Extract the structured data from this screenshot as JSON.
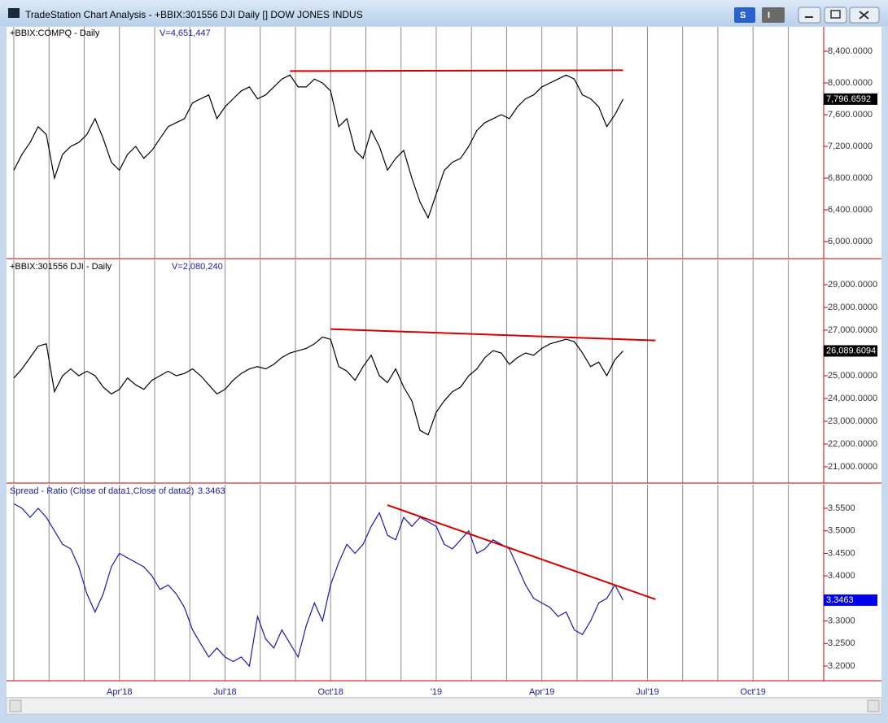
{
  "window": {
    "title": "TradeStation Chart Analysis - +BBIX:301556 DJI Daily [] DOW JONES INDUS",
    "buttons": [
      "S",
      "I"
    ]
  },
  "chart_data": [
    {
      "type": "line",
      "title": "+BBIX:COMPQ - Daily",
      "volume_label": "V=4,651,447",
      "color": "#000000",
      "values": [
        6900,
        7100,
        7250,
        7450,
        7350,
        6800,
        7100,
        7200,
        7250,
        7350,
        7550,
        7300,
        7000,
        6900,
        7100,
        7200,
        7050,
        7150,
        7300,
        7450,
        7500,
        7550,
        7750,
        7800,
        7850,
        7550,
        7700,
        7800,
        7900,
        7950,
        7800,
        7850,
        7950,
        8050,
        8100,
        7950,
        7950,
        8050,
        8000,
        7900,
        7450,
        7550,
        7150,
        7050,
        7400,
        7200,
        6900,
        7050,
        7150,
        6800,
        6500,
        6300,
        6600,
        6900,
        7000,
        7050,
        7200,
        7400,
        7500,
        7550,
        7600,
        7550,
        7700,
        7800,
        7850,
        7950,
        8000,
        8050,
        8100,
        8050,
        7850,
        7800,
        7700,
        7450,
        7600,
        7796.6592,
        null,
        null,
        null,
        null,
        null,
        null,
        null,
        null,
        null,
        null,
        null,
        null,
        null,
        null,
        null,
        null,
        null,
        null,
        null,
        null,
        null,
        null,
        null,
        null
      ],
      "last_label": "7,796.6592",
      "last_label_color": "#000000",
      "ylim": [
        5785,
        8708
      ],
      "yticks": [
        {
          "value": 8400,
          "label": "8,400.0000"
        },
        {
          "value": 8000,
          "label": "8,000.0000"
        },
        {
          "value": 7600,
          "label": "7,600.0000"
        },
        {
          "value": 7200,
          "label": "7,200.0000"
        },
        {
          "value": 6800,
          "label": "6,800.0000"
        },
        {
          "value": 6400,
          "label": "6,400.0000"
        },
        {
          "value": 6000,
          "label": "6,000.0000"
        }
      ],
      "trendline": {
        "from": 34,
        "to": 75,
        "values": [
          8150,
          8160
        ],
        "color": "#d00000"
      }
    },
    {
      "type": "line",
      "title": "+BBIX:301556 DJI - Daily",
      "volume_label": "V=2,080,240",
      "color": "#000000",
      "values": [
        24900,
        25300,
        25800,
        26300,
        26400,
        24300,
        25000,
        25300,
        25000,
        25200,
        25000,
        24500,
        24200,
        24400,
        24900,
        24600,
        24400,
        24800,
        25000,
        25200,
        25000,
        25100,
        25300,
        25000,
        24600,
        24200,
        24400,
        24800,
        25100,
        25300,
        25400,
        25300,
        25500,
        25800,
        26000,
        26100,
        26200,
        26400,
        26700,
        26600,
        25400,
        25200,
        24800,
        25400,
        25900,
        25000,
        24700,
        25300,
        24500,
        23900,
        22600,
        22400,
        23400,
        23900,
        24300,
        24500,
        25000,
        25300,
        25800,
        26100,
        26000,
        25500,
        25800,
        26000,
        25900,
        26200,
        26400,
        26500,
        26600,
        26500,
        26000,
        25400,
        25600,
        25000,
        25700,
        26089.6094,
        null,
        null,
        null,
        null,
        null,
        null,
        null,
        null,
        null,
        null,
        null,
        null,
        null,
        null,
        null,
        null,
        null,
        null,
        null,
        null,
        null,
        null,
        null,
        null
      ],
      "last_label": "26,089.6094",
      "last_label_color": "#000000",
      "ylim": [
        20286,
        30071
      ],
      "yticks": [
        {
          "value": 29000,
          "label": "29,000.0000"
        },
        {
          "value": 28000,
          "label": "28,000.0000"
        },
        {
          "value": 27000,
          "label": "27,000.0000"
        },
        {
          "value": 26000,
          "label": "26,000.0000"
        },
        {
          "value": 25000,
          "label": "25,000.0000"
        },
        {
          "value": 24000,
          "label": "24,000.0000"
        },
        {
          "value": 23000,
          "label": "23,000.0000"
        },
        {
          "value": 22000,
          "label": "22,000.0000"
        },
        {
          "value": 21000,
          "label": "21,000.0000"
        }
      ],
      "trendline": {
        "from": 39,
        "to": 79,
        "values": [
          27050,
          26550
        ],
        "color": "#d00000"
      }
    },
    {
      "type": "line",
      "title": "Spread - Ratio (Close of data1,Close of data2)",
      "volume_label": "3.3463",
      "color": "#1a1aa6",
      "categories": [
        null,
        null,
        null,
        null,
        null,
        null,
        null,
        null,
        null,
        null,
        null,
        null,
        null,
        "Apr'18",
        null,
        null,
        null,
        null,
        null,
        null,
        null,
        null,
        null,
        null,
        null,
        null,
        "Jul'18",
        null,
        null,
        null,
        null,
        null,
        null,
        null,
        null,
        null,
        null,
        null,
        null,
        "Oct'18",
        null,
        null,
        null,
        null,
        null,
        null,
        null,
        null,
        null,
        null,
        null,
        null,
        "'19",
        null,
        null,
        null,
        null,
        null,
        null,
        null,
        null,
        null,
        null,
        null,
        null,
        "Apr'19",
        null,
        null,
        null,
        null,
        null,
        null,
        null,
        null,
        null,
        null,
        null,
        null,
        "Jul'19",
        null,
        null,
        null,
        null,
        null,
        null,
        null,
        null,
        null,
        null,
        null,
        null,
        "Oct'19",
        null,
        null,
        null,
        null,
        null,
        null,
        null,
        null
      ],
      "values": [
        3.56,
        3.55,
        3.53,
        3.55,
        3.53,
        3.5,
        3.47,
        3.46,
        3.42,
        3.36,
        3.32,
        3.36,
        3.42,
        3.45,
        3.44,
        3.43,
        3.42,
        3.4,
        3.37,
        3.38,
        3.36,
        3.33,
        3.28,
        3.25,
        3.22,
        3.24,
        3.22,
        3.21,
        3.22,
        3.2,
        3.31,
        3.26,
        3.24,
        3.28,
        3.25,
        3.22,
        3.29,
        3.34,
        3.3,
        3.38,
        3.43,
        3.47,
        3.45,
        3.47,
        3.51,
        3.54,
        3.49,
        3.48,
        3.53,
        3.51,
        3.53,
        3.52,
        3.51,
        3.47,
        3.46,
        3.48,
        3.5,
        3.45,
        3.46,
        3.48,
        3.47,
        3.46,
        3.42,
        3.38,
        3.35,
        3.34,
        3.33,
        3.31,
        3.32,
        3.28,
        3.27,
        3.3,
        3.34,
        3.35,
        3.38,
        3.3463,
        null,
        null,
        null,
        null,
        null,
        null,
        null,
        null,
        null,
        null,
        null,
        null,
        null,
        null,
        null,
        null,
        null,
        null,
        null,
        null,
        null,
        null,
        null,
        null
      ],
      "last_label": "3.3463",
      "last_label_color": "#0000ee",
      "ylim": [
        3.1675,
        3.6023
      ],
      "yticks": [
        {
          "value": 3.55,
          "label": "3.5500"
        },
        {
          "value": 3.5,
          "label": "3.5000"
        },
        {
          "value": 3.45,
          "label": "3.4500"
        },
        {
          "value": 3.4,
          "label": "3.4000"
        },
        {
          "value": 3.35,
          "label": "3.3500"
        },
        {
          "value": 3.3,
          "label": "3.3000"
        },
        {
          "value": 3.25,
          "label": "3.2500"
        },
        {
          "value": 3.2,
          "label": "3.2000"
        }
      ],
      "trendline": {
        "from": 46,
        "to": 79,
        "values": [
          3.557,
          3.348
        ],
        "color": "#d00000"
      }
    }
  ]
}
